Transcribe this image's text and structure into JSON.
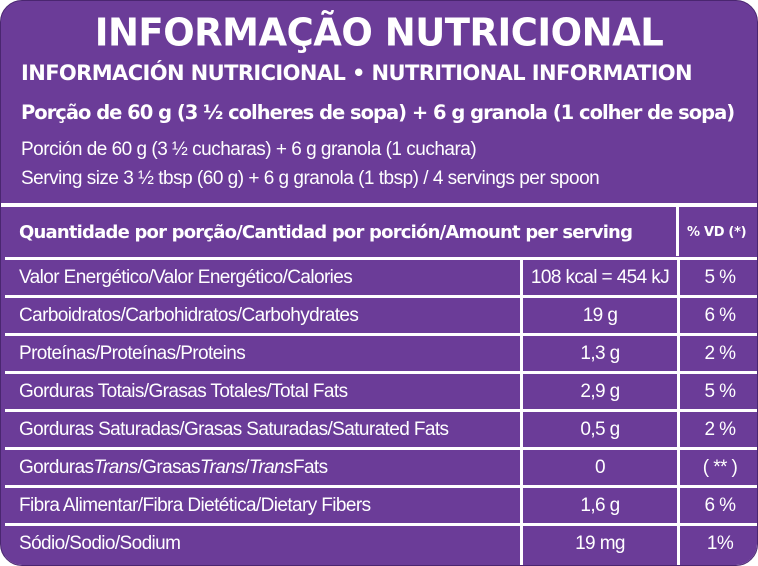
{
  "title": "INFORMAÇÃO NUTRICIONAL",
  "subtitle": "INFORMACIÓN NUTRICIONAL • NUTRITIONAL INFORMATION",
  "portion": {
    "pt": "Porção de 60 g (3 ½ colheres de sopa) + 6 g granola (1 colher de sopa)",
    "es": "Porción de 60 g (3 ½ cucharas) + 6 g granola (1 cuchara)",
    "en": "Serving size 3 ½ tbsp  (60 g) + 6 g granola (1 tbsp) / 4 servings per spoon"
  },
  "header": {
    "amount": "Quantidade por porção/Cantidad por porción/Amount per serving",
    "dv": "% VD (*)"
  },
  "rows": [
    {
      "name": "Valor Energético/Valor Energético/Calories",
      "qty": "108 kcal = 454 kJ",
      "dv": "5 %"
    },
    {
      "name": "Carboidratos/Carbohidratos/Carbohydrates",
      "qty": "19 g",
      "dv": "6 %"
    },
    {
      "name": "Proteínas/Proteínas/Proteins",
      "qty": "1,3 g",
      "dv": "2 %"
    },
    {
      "name": "Gorduras Totais/Grasas Totales/Total Fats",
      "qty": "2,9 g",
      "dv": "5 %"
    },
    {
      "name": "Gorduras Saturadas/Grasas Saturadas/Saturated Fats",
      "qty": "0,5 g",
      "dv": "2 %"
    },
    {
      "name_parts": [
        "Gorduras ",
        "Trans",
        "/Grasas ",
        "Trans",
        "/",
        "Trans",
        " Fats"
      ],
      "qty": "0",
      "dv": "( ** )"
    },
    {
      "name": "Fibra Alimentar/Fibra Dietética/Dietary Fibers",
      "qty": "1,6 g",
      "dv": "6 %"
    },
    {
      "name": "Sódio/Sodio/Sodium",
      "qty": "19 mg",
      "dv": "1%"
    }
  ],
  "colors": {
    "background": "#6b3c98",
    "text": "#ffffff"
  }
}
